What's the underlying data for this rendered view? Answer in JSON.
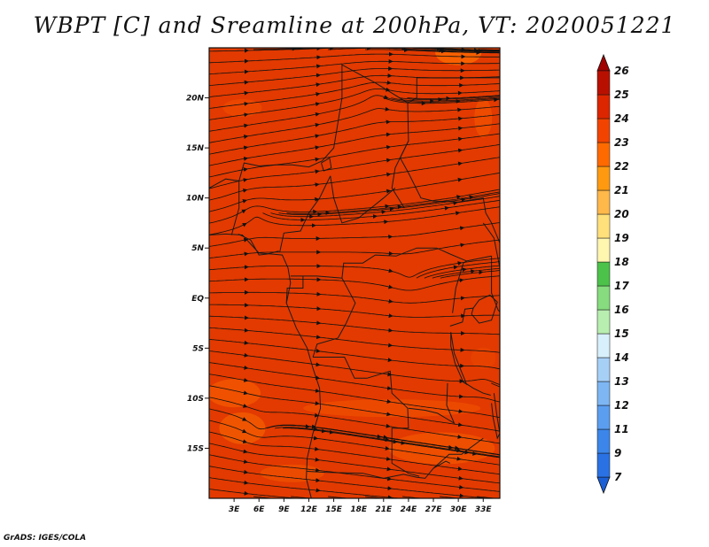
{
  "title": "WBPT [C] and Sreamline at 200hPa, VT: 2020051221",
  "credit": "GrADS: IGES/COLA",
  "chart_data": {
    "type": "heatmap",
    "variable": "WBPT",
    "units": "C",
    "overlay": "streamlines",
    "field_value_range": [
      23,
      25
    ],
    "x_ticks": [
      "3E",
      "6E",
      "9E",
      "12E",
      "15E",
      "18E",
      "21E",
      "24E",
      "27E",
      "30E",
      "33E"
    ],
    "x_tick_values": [
      3,
      6,
      9,
      12,
      15,
      18,
      21,
      24,
      27,
      30,
      33
    ],
    "y_ticks": [
      "20N",
      "15N",
      "10N",
      "5N",
      "EQ",
      "5S",
      "10S",
      "15S"
    ],
    "y_tick_values": [
      20,
      15,
      10,
      5,
      0,
      -5,
      -10,
      -15
    ],
    "xlim": [
      0,
      35
    ],
    "ylim": [
      -20,
      25
    ],
    "colorbar": {
      "levels": [
        "7",
        "9",
        "11",
        "12",
        "13",
        "14",
        "15",
        "16",
        "17",
        "18",
        "19",
        "20",
        "21",
        "22",
        "23",
        "24",
        "25",
        "26"
      ],
      "colors": [
        "#1a5fd6",
        "#2a72e4",
        "#3c86ea",
        "#5b9ef0",
        "#7db6f3",
        "#a7d0f7",
        "#d8f0fb",
        "#b8eeb0",
        "#86dc7e",
        "#4cc24a",
        "#fff6b0",
        "#ffe07a",
        "#ffb84a",
        "#ff9a10",
        "#ff6a00",
        "#f24400",
        "#dc2600",
        "#b81000",
        "#a00000"
      ]
    }
  }
}
